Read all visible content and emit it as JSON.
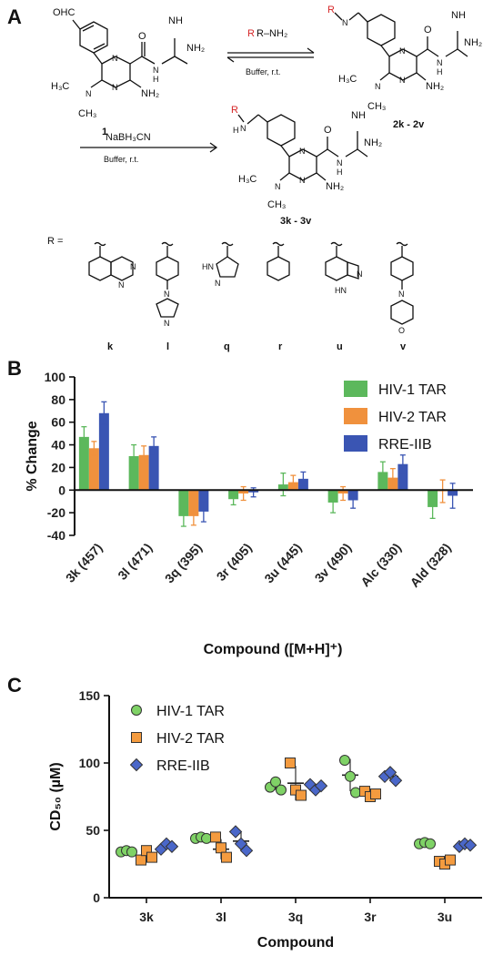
{
  "panel_a": {
    "letter": "A",
    "reagent_amine": "R–NH₂",
    "conditions_1": "Buffer, r.t.",
    "reductant": "NaBH₃CN",
    "conditions_2": "Buffer, r.t.",
    "compound_1": "1",
    "compound_2": "2k - 2v",
    "compound_3": "3k - 3v",
    "r_eq": "R =",
    "substituent_labels": [
      "k",
      "l",
      "q",
      "r",
      "u",
      "v"
    ],
    "atom_labels": {
      "oh": "OHC",
      "o": "O",
      "nh": "NH",
      "n": "N",
      "h": "H",
      "nh2": "NH₂",
      "h3c": "H₃C",
      "ch3": "CH₃",
      "r": "R",
      "hn": "HN"
    }
  },
  "panel_b": {
    "letter": "B"
  },
  "panel_c": {
    "letter": "C"
  },
  "colors": {
    "hiv1": "#5cb85c",
    "hiv2": "#f0913d",
    "rre": "#3a55b3",
    "hiv1_marker": "#7fd266",
    "hiv2_marker": "#f49b3f",
    "rre_marker": "#4a67c9"
  },
  "chart_data": [
    {
      "type": "bar",
      "panel": "B",
      "ylabel": "% Change",
      "xlabel": "Compound ([M+H]⁺)",
      "ylim": [
        -40,
        100
      ],
      "yticks": [
        -40,
        -20,
        0,
        20,
        40,
        60,
        80,
        100
      ],
      "legend_position": "top-right",
      "categories": [
        "3k (457)",
        "3l (471)",
        "3q (395)",
        "3r (405)",
        "3u (445)",
        "3v (490)",
        "Alc (330)",
        "Ald (328)"
      ],
      "series": [
        {
          "name": "HIV-1 TAR",
          "values": [
            47,
            30,
            -23,
            -8,
            5,
            -11,
            16,
            -15
          ],
          "errors": [
            9,
            10,
            9,
            5,
            10,
            9,
            9,
            10
          ]
        },
        {
          "name": "HIV-2 TAR",
          "values": [
            37,
            31,
            -23,
            -3,
            7,
            -3,
            11,
            -1
          ],
          "errors": [
            6,
            8,
            8,
            6,
            6,
            6,
            8,
            10
          ]
        },
        {
          "name": "RRE-IIB",
          "values": [
            68,
            39,
            -19,
            -2,
            10,
            -9,
            23,
            -5
          ],
          "errors": [
            10,
            8,
            9,
            4,
            6,
            7,
            8,
            11
          ]
        }
      ]
    },
    {
      "type": "scatter",
      "panel": "C",
      "ylabel": "CD₅₀ (µM)",
      "xlabel": "Compound",
      "ylim": [
        0,
        150
      ],
      "yticks": [
        0,
        50,
        100,
        150
      ],
      "legend_position": "top-left",
      "categories": [
        "3k",
        "3l",
        "3q",
        "3r",
        "3u"
      ],
      "series": [
        {
          "name": "HIV-1 TAR",
          "marker": "circle",
          "points": [
            [
              34,
              35,
              34
            ],
            [
              44,
              45,
              44
            ],
            [
              82,
              86,
              80
            ],
            [
              102,
              90,
              78
            ],
            [
              40,
              41,
              40
            ]
          ],
          "means": [
            34,
            44,
            83,
            91,
            40
          ]
        },
        {
          "name": "HIV-2 TAR",
          "marker": "square",
          "points": [
            [
              28,
              35,
              30
            ],
            [
              45,
              37,
              30
            ],
            [
              100,
              80,
              76
            ],
            [
              79,
              75,
              77
            ],
            [
              27,
              25,
              28
            ]
          ],
          "means": [
            31,
            36,
            85,
            77,
            26
          ]
        },
        {
          "name": "RRE-IIB",
          "marker": "diamond",
          "points": [
            [
              36,
              40,
              38
            ],
            [
              49,
              40,
              35
            ],
            [
              84,
              80,
              83
            ],
            [
              90,
              93,
              87
            ],
            [
              38,
              40,
              39
            ]
          ],
          "means": [
            38,
            42,
            82,
            90,
            39
          ]
        }
      ]
    }
  ]
}
